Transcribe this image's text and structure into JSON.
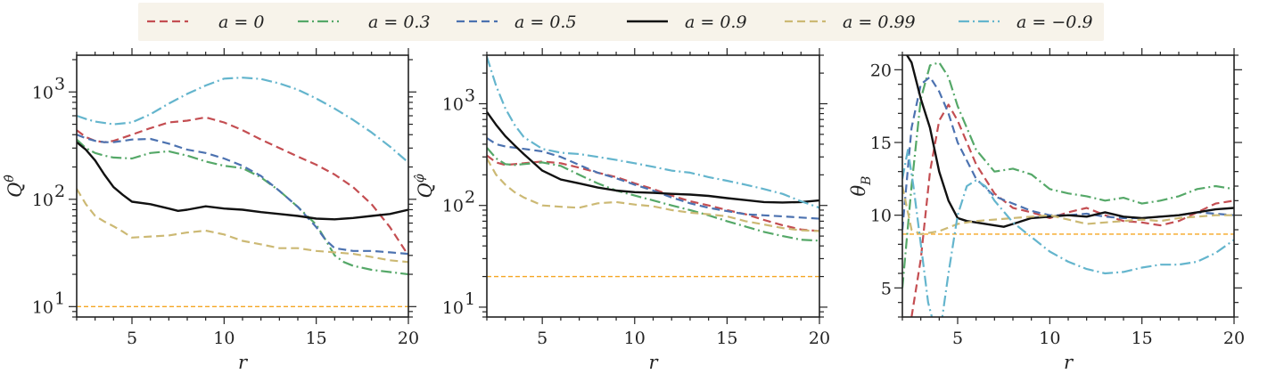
{
  "legend": {
    "entries": [
      {
        "key": "a0",
        "label": "a = 0",
        "color": "#c44e52",
        "dash": "dashed"
      },
      {
        "key": "a03",
        "label": "a = 0.3",
        "color": "#55a868",
        "dash": "dashdot"
      },
      {
        "key": "a05",
        "label": "a = 0.5",
        "color": "#4c72b0",
        "dash": "dashed"
      },
      {
        "key": "a09",
        "label": "a = 0.9",
        "color": "#111111",
        "dash": "solid"
      },
      {
        "key": "a099",
        "label": "a = 0.99",
        "color": "#ccb974",
        "dash": "dashed"
      },
      {
        "key": "am09",
        "label": "a = −0.9",
        "color": "#64b5cd",
        "dash": "dashdot"
      }
    ],
    "background": "#f7f3ea"
  },
  "reference_line_color": "#f5a623",
  "chart_data": [
    {
      "type": "line",
      "id": "panel1",
      "yscale": "log",
      "xlim": [
        2,
        20
      ],
      "ylim": [
        8,
        2200
      ],
      "xlabel": "r",
      "ylabel": "Q^θ̂",
      "ylabel_main": "Q",
      "ylabel_sup": "θ̂",
      "xticks": [
        5,
        10,
        15,
        20
      ],
      "xtick_labels": [
        "5",
        "10",
        "15",
        "20"
      ],
      "yticks": [
        10,
        100,
        1000
      ],
      "ytick_labels": [
        "10",
        "10",
        "10"
      ],
      "ytick_exps": [
        "1",
        "2",
        "3"
      ],
      "hline": 10,
      "series": [
        {
          "key": "a0",
          "x": [
            2,
            2.5,
            3,
            3.5,
            4,
            5,
            6,
            7,
            8,
            9,
            10,
            11,
            12,
            13,
            14,
            15,
            16,
            17,
            18,
            19,
            20
          ],
          "y": [
            440,
            380,
            350,
            340,
            350,
            400,
            460,
            520,
            540,
            580,
            520,
            440,
            360,
            300,
            250,
            210,
            170,
            130,
            90,
            55,
            30
          ]
        },
        {
          "key": "a03",
          "x": [
            2,
            2.5,
            3,
            3.5,
            4,
            5,
            6,
            7,
            8,
            9,
            10,
            11,
            12,
            13,
            14,
            15,
            15.5,
            16,
            16.5,
            17,
            18,
            19,
            20
          ],
          "y": [
            360,
            300,
            270,
            255,
            245,
            240,
            270,
            280,
            255,
            225,
            205,
            195,
            160,
            120,
            85,
            58,
            42,
            30,
            26,
            24,
            22,
            21,
            20
          ]
        },
        {
          "key": "a05",
          "x": [
            2,
            2.5,
            3,
            3.5,
            4,
            5,
            6,
            7,
            8,
            9,
            10,
            11,
            12,
            13,
            14,
            15,
            15.5,
            16,
            17,
            18,
            19,
            20
          ],
          "y": [
            400,
            370,
            350,
            340,
            340,
            360,
            365,
            330,
            290,
            270,
            240,
            205,
            165,
            120,
            85,
            55,
            42,
            35,
            33,
            33,
            32,
            31
          ]
        },
        {
          "key": "a09",
          "x": [
            2,
            2.5,
            3,
            3.5,
            4,
            4.5,
            5,
            6,
            7,
            7.5,
            8,
            9,
            10,
            11,
            12,
            13,
            14,
            15,
            16,
            17,
            18,
            19,
            20
          ],
          "y": [
            340,
            290,
            230,
            170,
            130,
            110,
            95,
            90,
            82,
            78,
            80,
            86,
            82,
            80,
            76,
            73,
            70,
            66,
            65,
            67,
            70,
            73,
            80
          ]
        },
        {
          "key": "a099",
          "x": [
            2,
            2.5,
            3,
            3.5,
            4,
            4.5,
            5,
            6,
            7,
            8,
            9,
            10,
            11,
            12,
            13,
            14,
            15,
            16,
            17,
            18,
            19,
            20
          ],
          "y": [
            125,
            90,
            70,
            62,
            56,
            50,
            44,
            45,
            46,
            49,
            51,
            47,
            41,
            38,
            35,
            35,
            33,
            32,
            31,
            29,
            27,
            26
          ]
        },
        {
          "key": "am09",
          "x": [
            2,
            2.5,
            3,
            4,
            5,
            6,
            7,
            8,
            9,
            10,
            11,
            12,
            13,
            14,
            15,
            16,
            17,
            18,
            19,
            20
          ],
          "y": [
            600,
            560,
            530,
            500,
            520,
            620,
            780,
            960,
            1150,
            1330,
            1360,
            1320,
            1200,
            1050,
            870,
            700,
            550,
            420,
            310,
            220
          ]
        }
      ]
    },
    {
      "type": "line",
      "id": "panel2",
      "yscale": "log",
      "xlim": [
        2,
        20
      ],
      "ylim": [
        8,
        3000
      ],
      "xlabel": "r",
      "ylabel": "Q^φ̂",
      "ylabel_main": "Q",
      "ylabel_sup": "φ̂",
      "xticks": [
        5,
        10,
        15,
        20
      ],
      "xtick_labels": [
        "5",
        "10",
        "15",
        "20"
      ],
      "yticks": [
        10,
        100,
        1000
      ],
      "ytick_labels": [
        "10",
        "10",
        "10"
      ],
      "ytick_exps": [
        "1",
        "2",
        "3"
      ],
      "hline": 20,
      "series": [
        {
          "key": "a0",
          "x": [
            2,
            2.5,
            3,
            3.5,
            4,
            5,
            6,
            7,
            8,
            9,
            10,
            11,
            12,
            13,
            14,
            15,
            16,
            17,
            18,
            19,
            20
          ],
          "y": [
            310,
            265,
            250,
            255,
            260,
            270,
            260,
            235,
            210,
            190,
            165,
            145,
            125,
            110,
            100,
            90,
            82,
            72,
            64,
            58,
            56
          ]
        },
        {
          "key": "a03",
          "x": [
            2,
            2.5,
            3,
            3.5,
            4,
            5,
            6,
            7,
            8,
            9,
            10,
            11,
            12,
            13,
            14,
            15,
            16,
            17,
            18,
            19,
            20
          ],
          "y": [
            370,
            290,
            255,
            250,
            255,
            265,
            245,
            200,
            165,
            140,
            125,
            112,
            100,
            90,
            80,
            70,
            62,
            55,
            50,
            46,
            45
          ]
        },
        {
          "key": "a05",
          "x": [
            2,
            2.5,
            3,
            3.5,
            4,
            5,
            6,
            7,
            8,
            9,
            10,
            11,
            12,
            13,
            14,
            15,
            16,
            17,
            18,
            19,
            20
          ],
          "y": [
            460,
            400,
            380,
            370,
            360,
            340,
            300,
            250,
            210,
            185,
            160,
            140,
            120,
            105,
            95,
            88,
            82,
            80,
            78,
            76,
            74
          ]
        },
        {
          "key": "a09",
          "x": [
            2,
            2.5,
            3,
            3.5,
            4,
            5,
            6,
            7,
            8,
            9,
            10,
            11,
            12,
            13,
            14,
            15,
            16,
            17,
            18,
            19,
            20
          ],
          "y": [
            830,
            620,
            480,
            390,
            320,
            220,
            180,
            165,
            150,
            140,
            135,
            133,
            130,
            128,
            124,
            118,
            113,
            108,
            107,
            108,
            112
          ]
        },
        {
          "key": "a099",
          "x": [
            2,
            2.5,
            3,
            3.5,
            4,
            5,
            6,
            7,
            8,
            9,
            10,
            11,
            12,
            13,
            14,
            15,
            16,
            17,
            18,
            19,
            20
          ],
          "y": [
            290,
            200,
            160,
            135,
            120,
            100,
            97,
            95,
            105,
            108,
            102,
            98,
            90,
            85,
            82,
            78,
            70,
            65,
            60,
            57,
            56
          ]
        },
        {
          "key": "am09",
          "x": [
            2,
            2.5,
            3,
            3.5,
            4,
            5,
            6,
            7,
            8,
            9,
            10,
            11,
            12,
            13,
            14,
            15,
            16,
            17,
            18,
            19,
            20
          ],
          "y": [
            2900,
            1500,
            900,
            620,
            470,
            360,
            330,
            320,
            300,
            280,
            260,
            240,
            220,
            210,
            190,
            175,
            160,
            145,
            130,
            110,
            95
          ]
        }
      ]
    },
    {
      "type": "line",
      "id": "panel3",
      "yscale": "linear",
      "xlim": [
        2,
        20
      ],
      "ylim": [
        3,
        21
      ],
      "xlabel": "r",
      "ylabel": "θ_B",
      "ylabel_main": "θ",
      "ylabel_sub": "B",
      "xticks": [
        5,
        10,
        15,
        20
      ],
      "xtick_labels": [
        "5",
        "10",
        "15",
        "20"
      ],
      "yticks": [
        5,
        10,
        15,
        20
      ],
      "ytick_labels": [
        "5",
        "10",
        "15",
        "20"
      ],
      "hline": 8.7,
      "series": [
        {
          "key": "a0",
          "x": [
            2.5,
            3,
            3.5,
            4,
            4.5,
            5,
            6,
            7,
            8,
            9,
            10,
            11,
            12,
            13,
            14,
            15,
            16,
            17,
            18,
            19,
            20
          ],
          "y": [
            3.0,
            7.0,
            13.0,
            16.5,
            17.6,
            16.5,
            13.5,
            11.5,
            10.5,
            10.2,
            9.8,
            10.2,
            10.5,
            10.0,
            9.6,
            9.5,
            9.3,
            9.6,
            10.2,
            10.8,
            11.0
          ]
        },
        {
          "key": "a03",
          "x": [
            2,
            2.5,
            3,
            3.5,
            4,
            4.5,
            5,
            6,
            7,
            8,
            9,
            10,
            11,
            12,
            13,
            14,
            15,
            16,
            17,
            18,
            19,
            20
          ],
          "y": [
            5.0,
            12.0,
            18.0,
            20.3,
            20.5,
            19.5,
            17.5,
            14.5,
            13.0,
            13.2,
            12.8,
            11.8,
            11.5,
            11.3,
            11.0,
            11.2,
            10.8,
            11.0,
            11.3,
            11.8,
            12.0,
            11.8
          ]
        },
        {
          "key": "a05",
          "x": [
            2,
            2.5,
            3,
            3.5,
            4,
            4.5,
            5,
            6,
            7,
            8,
            9,
            10,
            11,
            12,
            13,
            14,
            15,
            16,
            17,
            18,
            19,
            20
          ],
          "y": [
            9.0,
            16.0,
            19.0,
            19.5,
            18.5,
            17.0,
            15.0,
            12.5,
            11.3,
            10.8,
            10.3,
            10.0,
            10.0,
            10.1,
            9.9,
            9.8,
            9.8,
            9.9,
            10.0,
            10.2,
            10.1,
            10.0
          ]
        },
        {
          "key": "a09",
          "x": [
            2,
            2.5,
            3,
            3.5,
            4,
            4.5,
            5,
            5.5,
            6,
            7,
            7.5,
            8,
            9,
            10,
            11,
            12,
            13,
            14,
            15,
            16,
            17,
            18,
            19,
            20
          ],
          "y": [
            21.5,
            20.5,
            18.0,
            16.0,
            13.0,
            11.0,
            9.8,
            9.6,
            9.5,
            9.3,
            9.2,
            9.4,
            9.8,
            9.9,
            10.0,
            9.9,
            10.2,
            9.9,
            9.8,
            9.9,
            10.0,
            10.2,
            10.4,
            10.5
          ]
        },
        {
          "key": "a099",
          "x": [
            2,
            2.5,
            3,
            3.5,
            4,
            5,
            6,
            7,
            8,
            9,
            10,
            11,
            12,
            13,
            14,
            15,
            16,
            17,
            18,
            19,
            20
          ],
          "y": [
            12.0,
            9.0,
            8.7,
            8.8,
            8.9,
            9.4,
            9.6,
            9.7,
            9.8,
            9.9,
            10.0,
            9.7,
            9.4,
            9.5,
            9.6,
            9.7,
            9.6,
            9.8,
            9.9,
            10.0,
            10.0
          ]
        },
        {
          "key": "am09",
          "x": [
            2,
            2.3,
            2.6,
            3,
            3.4,
            3.8,
            4,
            4.5,
            5,
            5.5,
            6,
            6.5,
            7,
            8,
            9,
            10,
            11,
            12,
            13,
            14,
            15,
            16,
            17,
            18,
            19,
            20
          ],
          "y": [
            12.5,
            14.5,
            12.0,
            8.0,
            4.0,
            2.0,
            1.5,
            6.0,
            10.0,
            12.0,
            12.4,
            12.0,
            11.0,
            9.5,
            8.5,
            7.5,
            6.8,
            6.3,
            6.0,
            6.1,
            6.4,
            6.6,
            6.6,
            6.8,
            7.4,
            8.3
          ]
        }
      ]
    }
  ]
}
